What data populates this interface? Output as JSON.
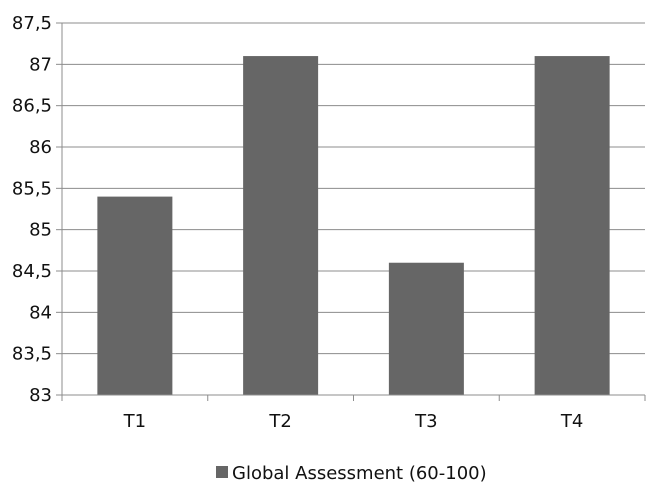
{
  "chart_data": {
    "type": "bar",
    "categories": [
      "T1",
      "T2",
      "T3",
      "T4"
    ],
    "series": [
      {
        "name": "Global Assessment (60-100)",
        "values": [
          85.4,
          87.1,
          84.6,
          87.1
        ]
      }
    ],
    "ylim": [
      83,
      87.5
    ],
    "yticks": [
      "83",
      "83,5",
      "84",
      "84,5",
      "85",
      "85,5",
      "86",
      "86,5",
      "87",
      "87,5"
    ],
    "grid": true,
    "legend_position": "bottom",
    "colors": {
      "bar": "#666666",
      "grid": "#8c8c8c",
      "axis": "#8c8c8c"
    }
  }
}
